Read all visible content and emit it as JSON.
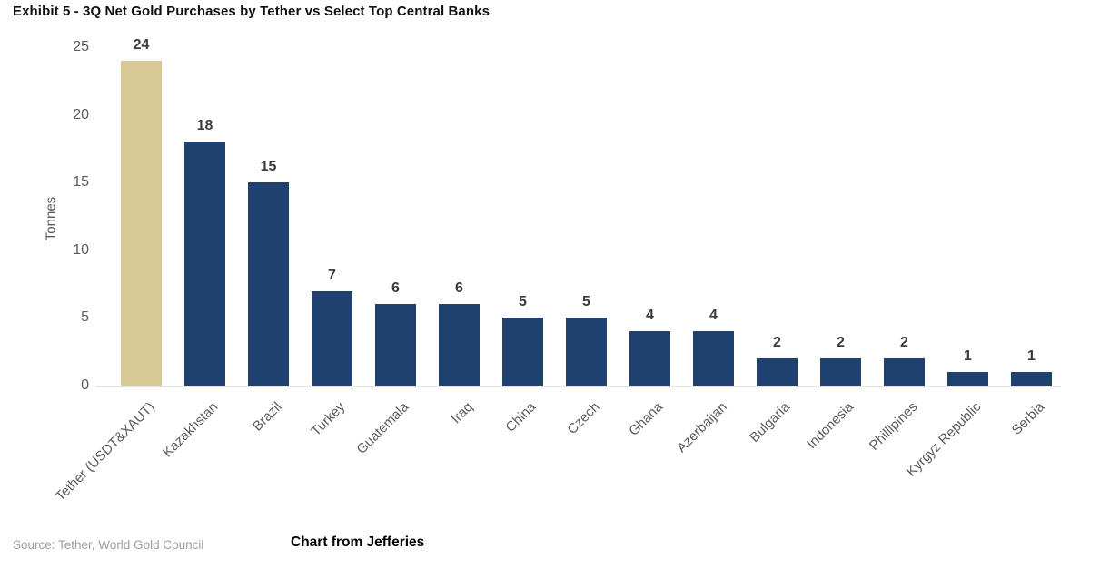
{
  "title": "Exhibit 5 - 3Q Net Gold Purchases by Tether vs Select Top Central Banks",
  "footer": {
    "source": "Source: Tether, World Gold Council",
    "caption": "Chart from Jefferies"
  },
  "colors": {
    "bar": "#1e4170",
    "highlight_bar": "#d8c994",
    "tick_label": "#5b5b5b",
    "value_label": "#3b3b3b",
    "axis_line": "#e2e2e2",
    "source_text": "#9e9e9e"
  },
  "chart_data": {
    "type": "bar",
    "title": "Exhibit 5 - 3Q Net Gold Purchases by Tether vs Select Top Central Banks",
    "categories": [
      "Tether (USDT&XAUT)",
      "Kazakhstan",
      "Brazil",
      "Turkey",
      "Guatemala",
      "Iraq",
      "China",
      "Czech",
      "Ghana",
      "Azerbaijan",
      "Bulgaria",
      "Indonesia",
      "Phillipines",
      "Kyrgyz Republic",
      "Serbia"
    ],
    "values": [
      24,
      18,
      15,
      7,
      6,
      6,
      5,
      5,
      4,
      4,
      2,
      2,
      2,
      1,
      1
    ],
    "bar_value_labels": [
      "24",
      "18",
      "15",
      "7",
      "6",
      "6",
      "5",
      "5",
      "4",
      "4",
      "2",
      "2",
      "2",
      "1",
      "1"
    ],
    "xlabel": "",
    "ylabel": "Tonnes",
    "ylim": [
      0,
      25
    ],
    "yticks": [
      0,
      5,
      10,
      15,
      20,
      25
    ],
    "grid": false,
    "legend": false,
    "highlight_category": "Tether (USDT&XAUT)",
    "highlight_index": 0
  }
}
